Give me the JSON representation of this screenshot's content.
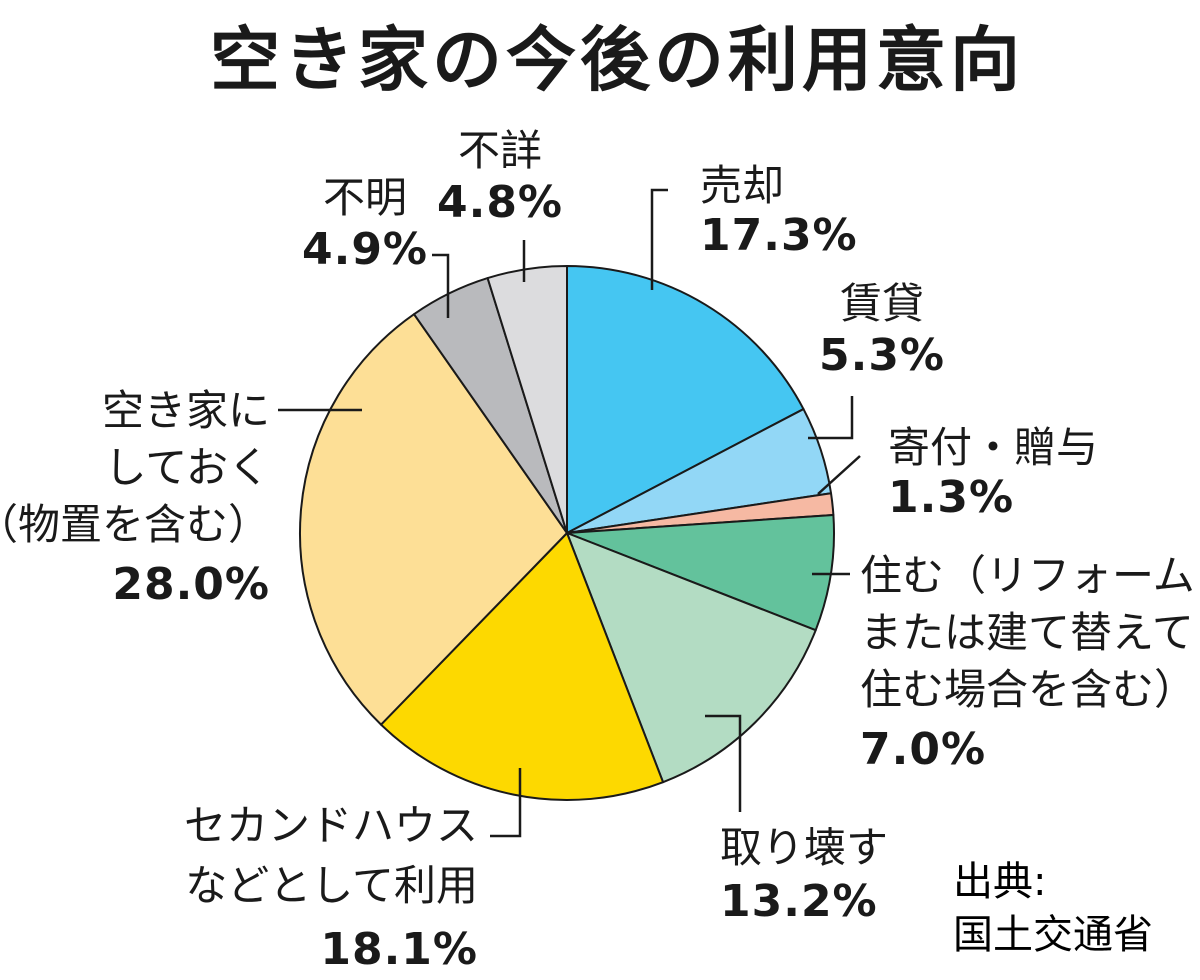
{
  "chart_data": {
    "type": "pie",
    "title": "空き家の今後の利用意向",
    "start_angle_deg": 0,
    "direction": "clockwise",
    "slices": [
      {
        "label": [
          "売却"
        ],
        "value": 17.3,
        "value_text": "17.3%",
        "color": "#45c6f2"
      },
      {
        "label": [
          "賃貸"
        ],
        "value": 5.3,
        "value_text": "5.3%",
        "color": "#92d7f6"
      },
      {
        "label": [
          "寄付・贈与"
        ],
        "value": 1.3,
        "value_text": "1.3%",
        "color": "#f6b9a3"
      },
      {
        "label": [
          "住む（リフォーム",
          "または建て替えて",
          "住む場合を含む）"
        ],
        "value": 7.0,
        "value_text": "7.0%",
        "color": "#63c29c"
      },
      {
        "label": [
          "取り壊す"
        ],
        "value": 13.2,
        "value_text": "13.2%",
        "color": "#b3dcc3"
      },
      {
        "label": [
          "セカンドハウス",
          "などとして利用"
        ],
        "value": 18.1,
        "value_text": "18.1%",
        "color": "#fdd900"
      },
      {
        "label": [
          "空き家に",
          "しておく",
          "（物置を含む）"
        ],
        "value": 28.0,
        "value_text": "28.0%",
        "color": "#fddf96"
      },
      {
        "label": [
          "不明"
        ],
        "value": 4.9,
        "value_text": "4.9%",
        "color": "#b9babd"
      },
      {
        "label": [
          "不詳"
        ],
        "value": 4.8,
        "value_text": "4.8%",
        "color": "#dcdcde"
      }
    ]
  },
  "source": [
    "出典:",
    "国土交通省"
  ]
}
